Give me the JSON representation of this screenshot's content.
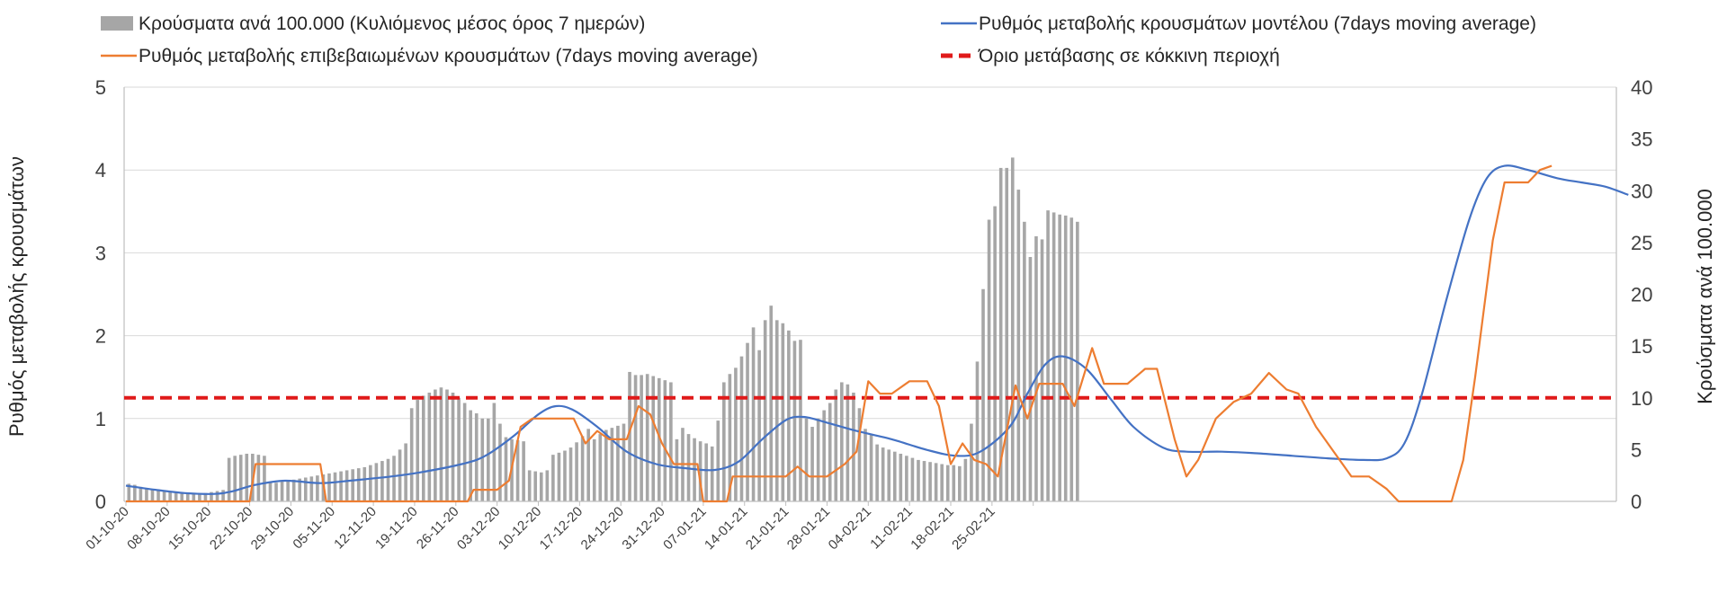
{
  "chart_data": {
    "type": "bar+line",
    "title": "",
    "xlabel": "",
    "ylabel_left": "Ρυθμός μεταβολής κρουσμάτων",
    "ylabel_right": "Κρούσματα ανά 100.000",
    "ylim_left": [
      0,
      5
    ],
    "ylim_right": [
      0,
      40
    ],
    "yticks_left": [
      "0",
      "1",
      "2",
      "3",
      "4",
      "5"
    ],
    "yticks_right": [
      "0",
      "5",
      "10",
      "15",
      "20",
      "25",
      "30",
      "35",
      "40"
    ],
    "grid": "horizontal",
    "legend_position": "top",
    "x_start": "01-10-20",
    "x_tick_labels": [
      "01-10-20",
      "08-10-20",
      "15-10-20",
      "22-10-20",
      "29-10-20",
      "05-11-20",
      "12-11-20",
      "19-11-20",
      "26-11-20",
      "03-12-20",
      "10-12-20",
      "17-12-20",
      "24-12-20",
      "31-12-20",
      "07-01-21",
      "14-01-21",
      "21-01-21",
      "28-01-21",
      "04-02-21",
      "11-02-21",
      "18-02-21",
      "25-02-21"
    ],
    "threshold": {
      "name": "Όριο μετάβασης σε κόκκινη περιοχή",
      "value": 1.25,
      "color": "#e01a1a"
    },
    "series": [
      {
        "name": "Κρούσματα ανά 100.000 (Κυλιόμενος μέσος όρος 7 ημερών)",
        "type": "bar",
        "axis": "right",
        "color": "#a6a6a6",
        "values": [
          1.7,
          1.6,
          1.4,
          1.3,
          1.2,
          1.1,
          1.0,
          0.9,
          0.9,
          0.8,
          0.8,
          0.7,
          0.7,
          0.8,
          0.9,
          1.0,
          1.1,
          4.2,
          4.4,
          4.5,
          4.6,
          4.6,
          4.5,
          4.4,
          1.8,
          1.8,
          1.9,
          2.0,
          2.1,
          2.2,
          2.3,
          2.4,
          2.5,
          2.6,
          2.7,
          2.8,
          2.9,
          3.0,
          3.1,
          3.2,
          3.3,
          3.5,
          3.7,
          3.9,
          4.1,
          4.4,
          5.0,
          5.6,
          9.0,
          9.8,
          10.2,
          10.5,
          10.8,
          11.0,
          10.8,
          10.5,
          10.0,
          9.5,
          8.8,
          8.5,
          8.0,
          8.0,
          9.5,
          7.5,
          6.2,
          6.0,
          5.9,
          5.8,
          3.0,
          2.9,
          2.8,
          3.0,
          4.5,
          4.7,
          4.9,
          5.2,
          5.7,
          6.3,
          7.0,
          6.0,
          6.5,
          6.9,
          7.1,
          7.3,
          7.5,
          12.5,
          12.2,
          12.2,
          12.3,
          12.1,
          11.9,
          11.7,
          11.5,
          6.0,
          7.1,
          6.5,
          6.1,
          5.8,
          5.6,
          5.3,
          7.8,
          11.5,
          12.3,
          12.9,
          14.0,
          15.3,
          16.8,
          14.6,
          17.5,
          18.9,
          17.5,
          17.2,
          16.5,
          15.5,
          15.6,
          8.0,
          7.2,
          8.0,
          8.8,
          9.5,
          10.8,
          11.5,
          11.3,
          10.5,
          9.0,
          7.0,
          6.5,
          5.5,
          5.2,
          5.0,
          4.8,
          4.6,
          4.4,
          4.2,
          4.0,
          3.9,
          3.8,
          3.7,
          3.6,
          3.5,
          3.5,
          3.4,
          4.1,
          7.5,
          13.5,
          20.5,
          27.2,
          28.5,
          32.2,
          32.2,
          33.2,
          30.1,
          27.0,
          23.6,
          25.6,
          25.3,
          28.1,
          27.9,
          27.7,
          27.6,
          27.4,
          27.0
        ]
      },
      {
        "name": "Ρυθμός μεταβολής κρουσμάτων μοντέλου (7days moving average)",
        "type": "line",
        "axis": "left",
        "color": "#4472c4",
        "points": [
          [
            0,
            0.19
          ],
          [
            5,
            0.14
          ],
          [
            10,
            0.1
          ],
          [
            15,
            0.09
          ],
          [
            18,
            0.12
          ],
          [
            22,
            0.2
          ],
          [
            27,
            0.25
          ],
          [
            33,
            0.22
          ],
          [
            38,
            0.25
          ],
          [
            45,
            0.3
          ],
          [
            50,
            0.35
          ],
          [
            57,
            0.45
          ],
          [
            61,
            0.55
          ],
          [
            66,
            0.8
          ],
          [
            70,
            1.05
          ],
          [
            73,
            1.15
          ],
          [
            76,
            1.1
          ],
          [
            80,
            0.9
          ],
          [
            85,
            0.6
          ],
          [
            90,
            0.45
          ],
          [
            95,
            0.4
          ],
          [
            100,
            0.38
          ],
          [
            104,
            0.48
          ],
          [
            108,
            0.75
          ],
          [
            112,
            0.98
          ],
          [
            115,
            1.02
          ],
          [
            119,
            0.95
          ],
          [
            124,
            0.85
          ],
          [
            130,
            0.75
          ],
          [
            136,
            0.62
          ],
          [
            141,
            0.55
          ],
          [
            145,
            0.6
          ],
          [
            150,
            0.9
          ],
          [
            153,
            1.3
          ],
          [
            156,
            1.65
          ],
          [
            159,
            1.75
          ],
          [
            163,
            1.6
          ],
          [
            167,
            1.25
          ],
          [
            171,
            0.9
          ],
          [
            176,
            0.65
          ],
          [
            180,
            0.6
          ],
          [
            186,
            0.6
          ],
          [
            192,
            0.58
          ],
          [
            198,
            0.55
          ],
          [
            204,
            0.52
          ],
          [
            210,
            0.5
          ],
          [
            214,
            0.52
          ],
          [
            217,
            0.7
          ],
          [
            220,
            1.3
          ],
          [
            224,
            2.4
          ],
          [
            228,
            3.4
          ],
          [
            231,
            3.9
          ],
          [
            234,
            4.05
          ],
          [
            238,
            4.0
          ],
          [
            243,
            3.9
          ],
          [
            247,
            3.85
          ],
          [
            251,
            3.8
          ],
          [
            255,
            3.7
          ]
        ]
      },
      {
        "name": "Ρυθμός μεταβολής επιβεβαιωμένων κρουσμάτων (7days moving average)",
        "type": "line",
        "axis": "left",
        "color": "#ed7d31",
        "points": [
          [
            0,
            0
          ],
          [
            21,
            0
          ],
          [
            22,
            0.45
          ],
          [
            33,
            0.45
          ],
          [
            34,
            0
          ],
          [
            58,
            0
          ],
          [
            59,
            0.14
          ],
          [
            63,
            0.14
          ],
          [
            65,
            0.25
          ],
          [
            67,
            0.9
          ],
          [
            69,
            1.0
          ],
          [
            73,
            1.0
          ],
          [
            76,
            1.0
          ],
          [
            78,
            0.7
          ],
          [
            80,
            0.85
          ],
          [
            82,
            0.75
          ],
          [
            85,
            0.75
          ],
          [
            87,
            1.15
          ],
          [
            89,
            1.05
          ],
          [
            91,
            0.7
          ],
          [
            93,
            0.45
          ],
          [
            97,
            0.45
          ],
          [
            98,
            0
          ],
          [
            102,
            0
          ],
          [
            103,
            0.3
          ],
          [
            112,
            0.3
          ],
          [
            114,
            0.42
          ],
          [
            116,
            0.3
          ],
          [
            119,
            0.3
          ],
          [
            122,
            0.45
          ],
          [
            124,
            0.6
          ],
          [
            126,
            1.45
          ],
          [
            128,
            1.3
          ],
          [
            130,
            1.3
          ],
          [
            133,
            1.45
          ],
          [
            136,
            1.45
          ],
          [
            138,
            1.15
          ],
          [
            140,
            0.45
          ],
          [
            142,
            0.7
          ],
          [
            144,
            0.5
          ],
          [
            146,
            0.45
          ],
          [
            148,
            0.3
          ],
          [
            151,
            1.4
          ],
          [
            153,
            1.0
          ],
          [
            155,
            1.42
          ],
          [
            159,
            1.42
          ],
          [
            161,
            1.15
          ],
          [
            164,
            1.85
          ],
          [
            166,
            1.42
          ],
          [
            170,
            1.42
          ],
          [
            173,
            1.6
          ],
          [
            175,
            1.6
          ],
          [
            178,
            0.75
          ],
          [
            180,
            0.3
          ],
          [
            182,
            0.5
          ],
          [
            185,
            1.0
          ],
          [
            188,
            1.2
          ],
          [
            191,
            1.3
          ],
          [
            194,
            1.55
          ],
          [
            197,
            1.35
          ],
          [
            199,
            1.3
          ],
          [
            202,
            0.9
          ],
          [
            205,
            0.6
          ],
          [
            208,
            0.3
          ],
          [
            211,
            0.3
          ],
          [
            214,
            0.15
          ],
          [
            216,
            0
          ],
          [
            225,
            0
          ],
          [
            227,
            0.5
          ],
          [
            229,
            1.5
          ],
          [
            232,
            3.15
          ],
          [
            234,
            3.85
          ],
          [
            236,
            3.85
          ],
          [
            238,
            3.85
          ],
          [
            240,
            4.0
          ],
          [
            242,
            4.05
          ]
        ]
      }
    ]
  }
}
